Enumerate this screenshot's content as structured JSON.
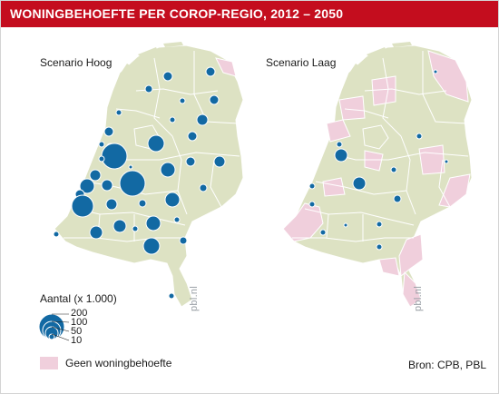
{
  "title": "WONINGBEHOEFTE PER COROP-REGIO, 2012 – 2050",
  "scenarios": {
    "high": "Scenario Hoog",
    "low": "Scenario Laag"
  },
  "watermark": "pbl.nl",
  "legend": {
    "title": "Aantal (x 1.000)",
    "values": [
      "200",
      "100",
      "50",
      "10"
    ],
    "no_need_label": "Geen woningbehoefte",
    "no_need_color": "#f0cfdc",
    "bubble_color": "#1269a3",
    "land_color": "#dde2c3"
  },
  "source": "Bron: CPB, PBL",
  "chart_data": {
    "type": "map",
    "unit": "x 1.000 woningen",
    "size_legend": [
      200,
      100,
      50,
      10
    ]
  }
}
